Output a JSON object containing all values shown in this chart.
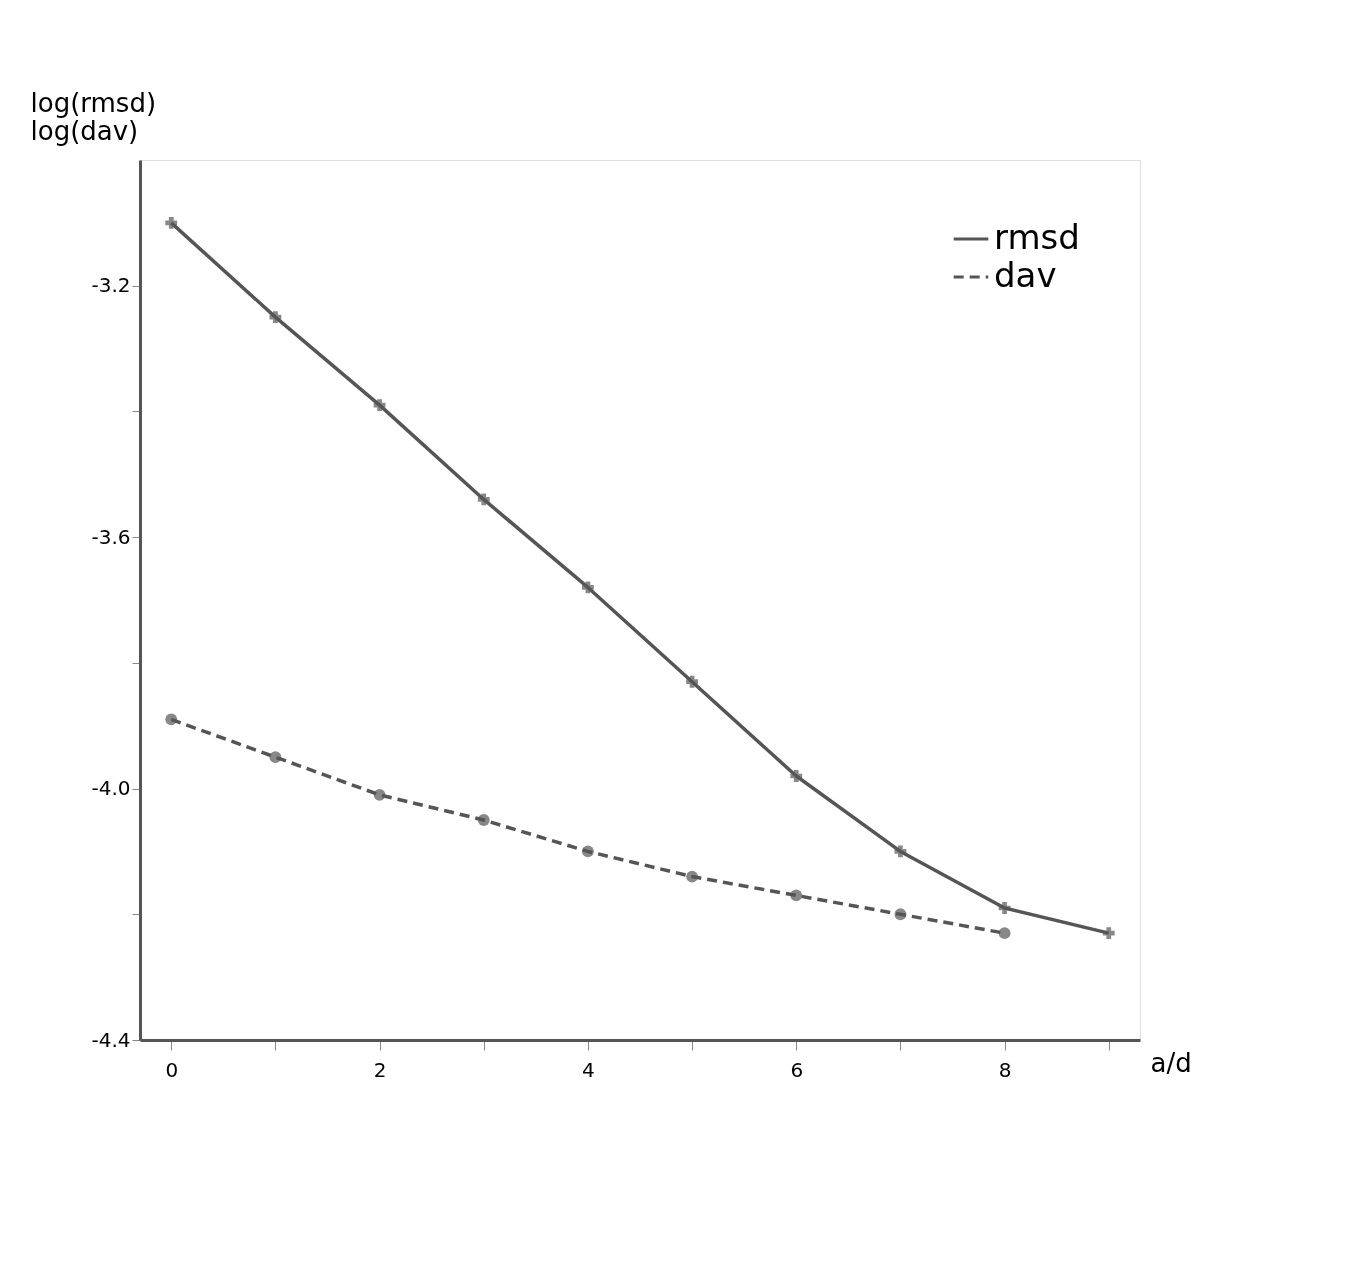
{
  "chart_data": {
    "type": "line",
    "xlabel": "a/d",
    "ylabel": "log(rmsd)\nlog(dav)",
    "x": [
      0,
      1,
      2,
      3,
      4,
      5,
      6,
      7,
      8,
      9
    ],
    "series": [
      {
        "name": "rmsd",
        "color": "#555555",
        "line_style": "solid",
        "marker": "cross",
        "values": [
          -3.1,
          -3.25,
          -3.39,
          -3.54,
          -3.68,
          -3.83,
          -3.98,
          -4.1,
          -4.19,
          -4.23
        ]
      },
      {
        "name": "dav",
        "color": "#555555",
        "line_style": "dashed",
        "marker": "circle",
        "values": [
          -3.89,
          -3.95,
          -4.01,
          -4.05,
          -4.1,
          -4.14,
          -4.17,
          -4.2,
          -4.23,
          null
        ]
      }
    ],
    "xlim": [
      -0.3,
      9.3
    ],
    "ylim": [
      -4.4,
      -3.0
    ],
    "xticks": [
      0,
      {
        "value": 1,
        "label": null
      },
      2,
      {
        "value": 3,
        "label": null
      },
      4,
      {
        "value": 5,
        "label": null
      },
      6,
      {
        "value": 7,
        "label": null
      },
      8,
      {
        "value": 9,
        "label": null
      }
    ],
    "yticks": [
      -4.4,
      {
        "value": -4.2,
        "label": null
      },
      {
        "value": -4.0,
        "label": "-4.0"
      },
      {
        "value": -3.8,
        "label": null
      },
      -3.6,
      {
        "value": -3.4,
        "label": null
      },
      -3.2
    ],
    "grid": false,
    "legend": "top right"
  }
}
